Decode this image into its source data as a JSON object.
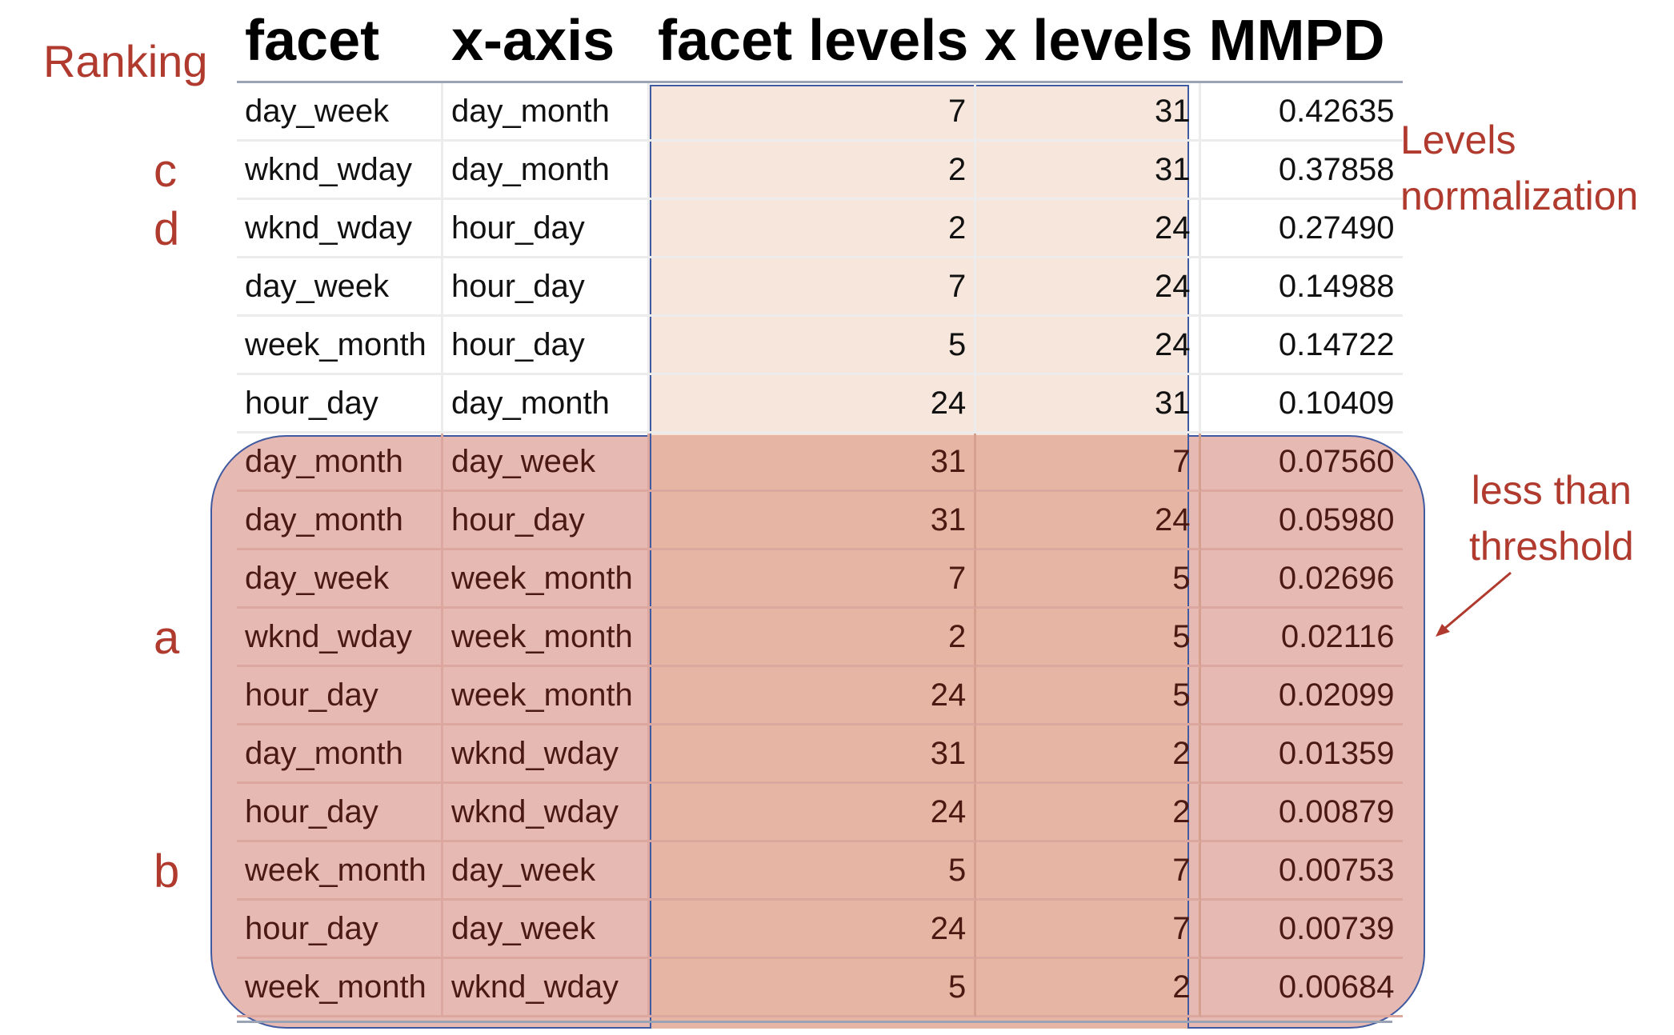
{
  "table": {
    "headers": [
      "facet",
      "x-axis",
      "facet levels",
      "x levels",
      "MMPD"
    ],
    "rows": [
      [
        "day_week",
        "day_month",
        "7",
        "31",
        "0.42635"
      ],
      [
        "wknd_wday",
        "day_month",
        "2",
        "31",
        "0.37858"
      ],
      [
        "wknd_wday",
        "hour_day",
        "2",
        "24",
        "0.27490"
      ],
      [
        "day_week",
        "hour_day",
        "7",
        "24",
        "0.14988"
      ],
      [
        "week_month",
        "hour_day",
        "5",
        "24",
        "0.14722"
      ],
      [
        "hour_day",
        "day_month",
        "24",
        "31",
        "0.10409"
      ],
      [
        "day_month",
        "day_week",
        "31",
        "7",
        "0.07560"
      ],
      [
        "day_month",
        "hour_day",
        "31",
        "24",
        "0.05980"
      ],
      [
        "day_week",
        "week_month",
        "7",
        "5",
        "0.02696"
      ],
      [
        "wknd_wday",
        "week_month",
        "2",
        "5",
        "0.02116"
      ],
      [
        "hour_day",
        "week_month",
        "24",
        "5",
        "0.02099"
      ],
      [
        "day_month",
        "wknd_wday",
        "31",
        "2",
        "0.01359"
      ],
      [
        "hour_day",
        "wknd_wday",
        "24",
        "2",
        "0.00879"
      ],
      [
        "week_month",
        "day_week",
        "5",
        "7",
        "0.00753"
      ],
      [
        "hour_day",
        "day_week",
        "24",
        "7",
        "0.00739"
      ],
      [
        "week_month",
        "wknd_wday",
        "5",
        "2",
        "0.00684"
      ]
    ],
    "below_threshold_from_row": 6
  },
  "annotations": {
    "ranking": "Ranking",
    "levels_line1": "Levels",
    "levels_line2": "normalization",
    "threshold_line1": "less than",
    "threshold_line2": "threshold",
    "row_labels": [
      {
        "text": "c",
        "row": 1
      },
      {
        "text": "d",
        "row": 2
      },
      {
        "text": "a",
        "row": 9
      },
      {
        "text": "b",
        "row": 13
      }
    ]
  },
  "colors": {
    "annotation_text": "#b03a2e",
    "levels_highlight": "#f7e6db",
    "threshold_highlight": "#e7b9b3",
    "outline": "#3f5aa0"
  }
}
